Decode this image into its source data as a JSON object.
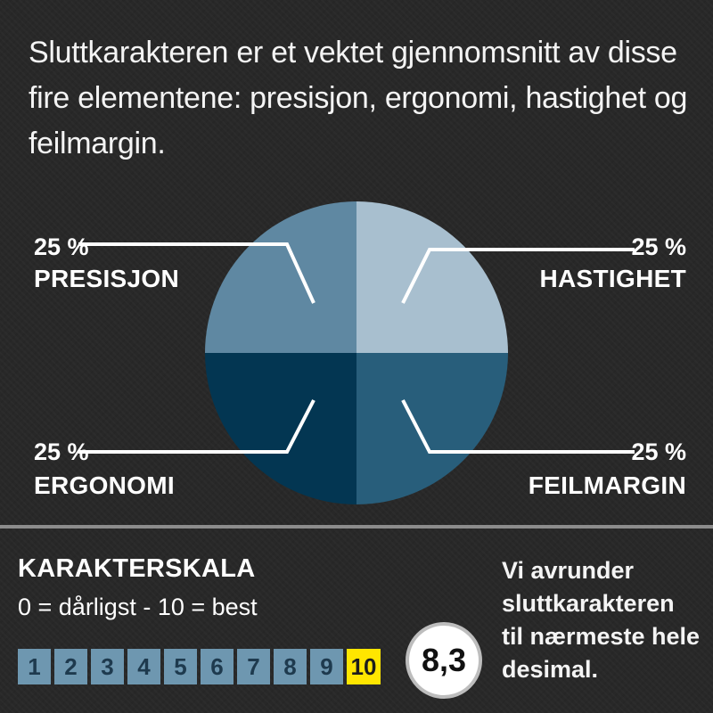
{
  "intro_text": "Sluttkarakteren er et vektet gjennomsnitt av disse fire elementene: presisjon, ergonomi, hastighet og feilmargin.",
  "chart_data": {
    "type": "pie",
    "slices": [
      {
        "label": "PRESISJON",
        "value": 25,
        "value_label": "25 %",
        "color": "#a8bfcf"
      },
      {
        "label": "HASTIGHET",
        "value": 25,
        "value_label": "25 %",
        "color": "#285e7b"
      },
      {
        "label": "FEILMARGIN",
        "value": 25,
        "value_label": "25 %",
        "color": "#033652"
      },
      {
        "label": "ERGONOMI",
        "value": 25,
        "value_label": "25 %",
        "color": "#5f88a2"
      }
    ]
  },
  "scale": {
    "title": "KARAKTERSKALA",
    "subtitle": "0 = dårligst - 10 = best",
    "steps": [
      "1",
      "2",
      "3",
      "4",
      "5",
      "6",
      "7",
      "8",
      "9",
      "10"
    ],
    "step_color": "#6e97b0",
    "best_color": "#ffe600"
  },
  "score": "8,3",
  "rounding_note": "Vi avrunder sluttkarakteren til nærmeste hele desimal."
}
